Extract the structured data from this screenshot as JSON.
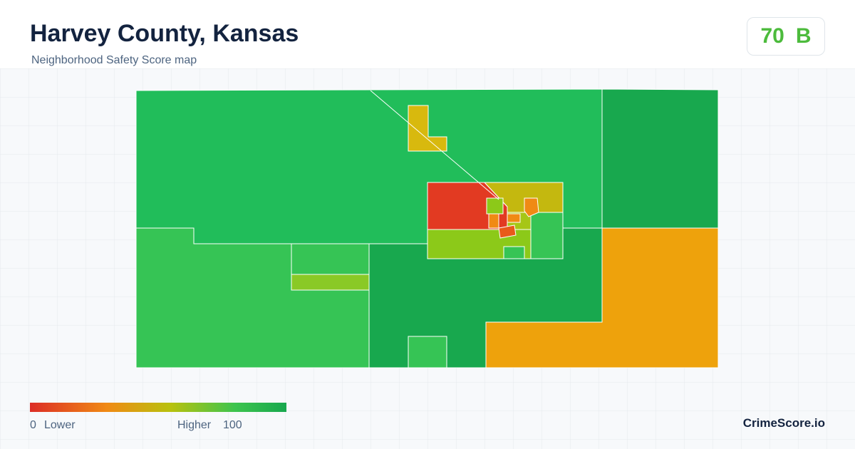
{
  "header": {
    "title": "Harvey County, Kansas",
    "subtitle": "Neighborhood Safety Score map"
  },
  "badge": {
    "score": "70",
    "grade": "B"
  },
  "legend": {
    "min": "0",
    "low_label": "Lower",
    "high_label": "Higher",
    "max": "100"
  },
  "brand": "CrimeScore.io"
}
